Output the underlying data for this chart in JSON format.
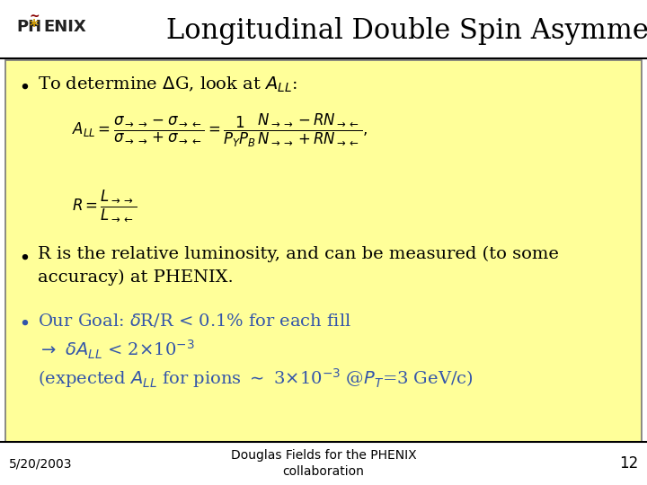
{
  "title": "Longitudinal Double Spin Asymmetries",
  "title_fontsize": 22,
  "title_color": "#000000",
  "background_color": "#ffffff",
  "content_bg_color": "#ffff99",
  "content_border_color": "#777777",
  "footer_date": "5/20/2003",
  "footer_center": "Douglas Fields for the PHENIX\ncollaboration",
  "footer_page": "12",
  "header_line_color": "#000000",
  "footer_line_color": "#000000",
  "bullet_color_1": "#000000",
  "bullet_color_2": "#000000",
  "bullet_color_3": "#3355aa"
}
